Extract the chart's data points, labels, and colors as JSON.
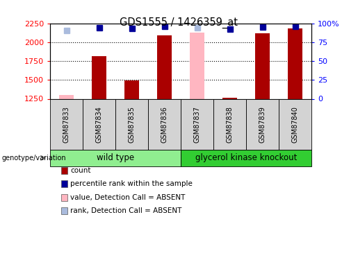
{
  "title": "GDS1555 / 1426359_at",
  "samples": [
    "GSM87833",
    "GSM87834",
    "GSM87835",
    "GSM87836",
    "GSM87837",
    "GSM87838",
    "GSM87839",
    "GSM87840"
  ],
  "count_values": [
    null,
    1820,
    1490,
    2095,
    null,
    1265,
    2120,
    2185
  ],
  "absent_values": [
    1300,
    null,
    null,
    null,
    2125,
    null,
    null,
    null
  ],
  "rank_values": [
    null,
    94,
    93,
    96,
    null,
    92,
    95,
    96
  ],
  "absent_rank_values": [
    91,
    null,
    null,
    null,
    94,
    null,
    null,
    null
  ],
  "groups": [
    {
      "label": "wild type",
      "samples": [
        0,
        1,
        2,
        3
      ],
      "color": "#90EE90"
    },
    {
      "label": "glycerol kinase knockout",
      "samples": [
        4,
        5,
        6,
        7
      ],
      "color": "#32CD32"
    }
  ],
  "ylim_left": [
    1250,
    2250
  ],
  "ylim_right": [
    0,
    100
  ],
  "yticks_left": [
    1250,
    1500,
    1750,
    2000,
    2250
  ],
  "yticks_right": [
    0,
    25,
    50,
    75,
    100
  ],
  "ytick_labels_right": [
    "0",
    "25",
    "50",
    "75",
    "100%"
  ],
  "bar_color": "#AA0000",
  "absent_bar_color": "#FFB6C1",
  "rank_color": "#000099",
  "absent_rank_color": "#AABBDD",
  "grid_color": "#000000",
  "bg_color": "#FFFFFF",
  "legend_items": [
    {
      "label": "count",
      "color": "#AA0000"
    },
    {
      "label": "percentile rank within the sample",
      "color": "#000099"
    },
    {
      "label": "value, Detection Call = ABSENT",
      "color": "#FFB6C1"
    },
    {
      "label": "rank, Detection Call = ABSENT",
      "color": "#AABBDD"
    }
  ],
  "group1_color": "#90EE90",
  "group2_color": "#32CD32"
}
